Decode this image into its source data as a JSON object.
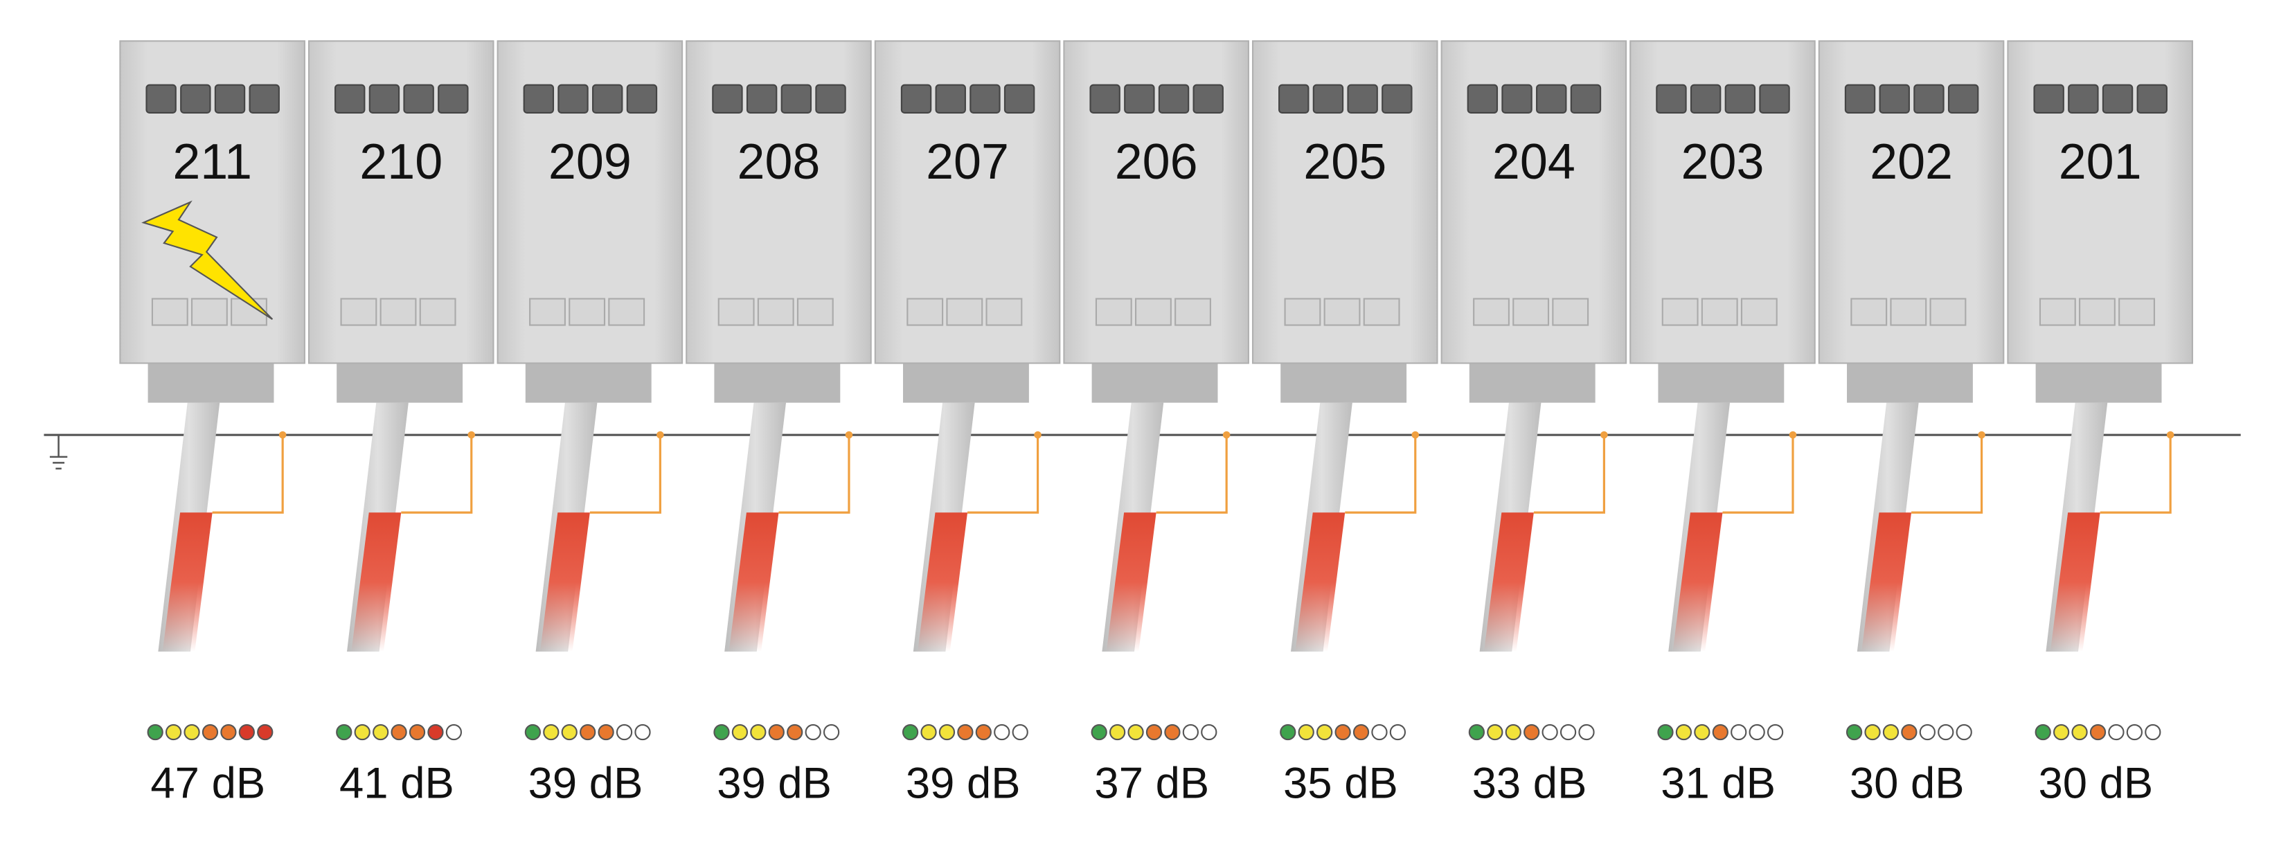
{
  "modules": [
    {
      "label": "211",
      "reading": "47 dB",
      "level": 7
    },
    {
      "label": "210",
      "reading": "41 dB",
      "level": 6
    },
    {
      "label": "209",
      "reading": "39 dB",
      "level": 5
    },
    {
      "label": "208",
      "reading": "39 dB",
      "level": 5
    },
    {
      "label": "207",
      "reading": "39 dB",
      "level": 5
    },
    {
      "label": "206",
      "reading": "37 dB",
      "level": 5
    },
    {
      "label": "205",
      "reading": "35 dB",
      "level": 5
    },
    {
      "label": "204",
      "reading": "33 dB",
      "level": 4
    },
    {
      "label": "203",
      "reading": "31 dB",
      "level": 4
    },
    {
      "label": "202",
      "reading": "30 dB",
      "level": 4
    },
    {
      "label": "201",
      "reading": "30 dB",
      "level": 4
    }
  ]
}
